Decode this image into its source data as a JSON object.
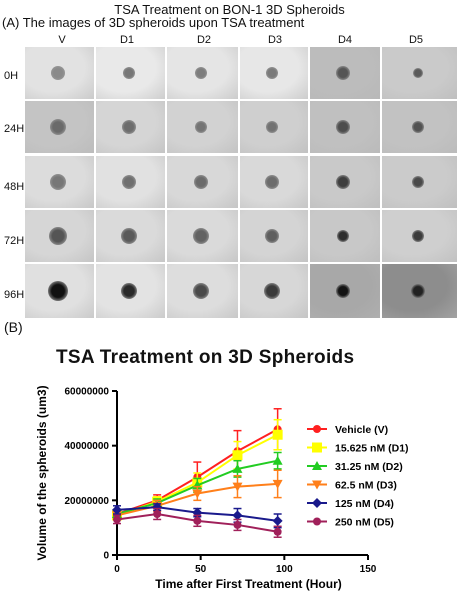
{
  "figure_title": "TSA Treatment on BON-1 3D Spheroids",
  "panel_a": {
    "label": "(A) The images of 3D spheroids upon TSA treatment",
    "columns": [
      "V",
      "D1",
      "D2",
      "D3",
      "D4",
      "D5"
    ],
    "rows": [
      "0H",
      "24H",
      "48H",
      "72H",
      "96H"
    ]
  },
  "panel_b_label": "(B)",
  "chart_data": {
    "type": "line",
    "title": "TSA Treatment on 3D Spheroids",
    "xlabel": "Time after First Treatment (Hour)",
    "ylabel": "Volume of the spheroids (um3)",
    "x": [
      0,
      24,
      48,
      72,
      96
    ],
    "xlim": [
      0,
      150
    ],
    "ylim": [
      0,
      60000000
    ],
    "xticks": [
      "0",
      "50",
      "100",
      "150"
    ],
    "yticks": [
      "0",
      "20000000",
      "40000000",
      "60000000"
    ],
    "legend_position": "right",
    "series": [
      {
        "name": "Vehicle (V)",
        "color": "#ff2020",
        "marker": "circle",
        "values": [
          15000000,
          20000000,
          28500000,
          38000000,
          46000000
        ],
        "errors": [
          1500000,
          2000000,
          5500000,
          7500000,
          7500000
        ]
      },
      {
        "name": "15.625 nM (D1)",
        "color": "#ffff00",
        "marker": "square",
        "values": [
          14500000,
          19500000,
          26500000,
          36500000,
          44000000
        ],
        "errors": [
          1500000,
          1800000,
          3500000,
          5000000,
          5500000
        ]
      },
      {
        "name": "31.25 nM (D2)",
        "color": "#22cc22",
        "marker": "triangle-up",
        "values": [
          15000000,
          19000000,
          25500000,
          31500000,
          34500000
        ],
        "errors": [
          1200000,
          1500000,
          2500000,
          3000000,
          3000000
        ]
      },
      {
        "name": "62.5 nM (D3)",
        "color": "#ff7f1a",
        "marker": "triangle-down",
        "values": [
          14500000,
          18000000,
          22500000,
          25000000,
          26000000
        ],
        "errors": [
          1500000,
          2000000,
          2500000,
          4000000,
          5000000
        ]
      },
      {
        "name": "125 nM (D4)",
        "color": "#1a1a8c",
        "marker": "diamond",
        "values": [
          16500000,
          17500000,
          15500000,
          14500000,
          12500000
        ],
        "errors": [
          1500000,
          1200000,
          1500000,
          2500000,
          2500000
        ]
      },
      {
        "name": "250 nM (D5)",
        "color": "#a0205a",
        "marker": "circle",
        "values": [
          13000000,
          15000000,
          12500000,
          11000000,
          8500000
        ],
        "errors": [
          1500000,
          2000000,
          2000000,
          2000000,
          2000000
        ]
      }
    ]
  }
}
